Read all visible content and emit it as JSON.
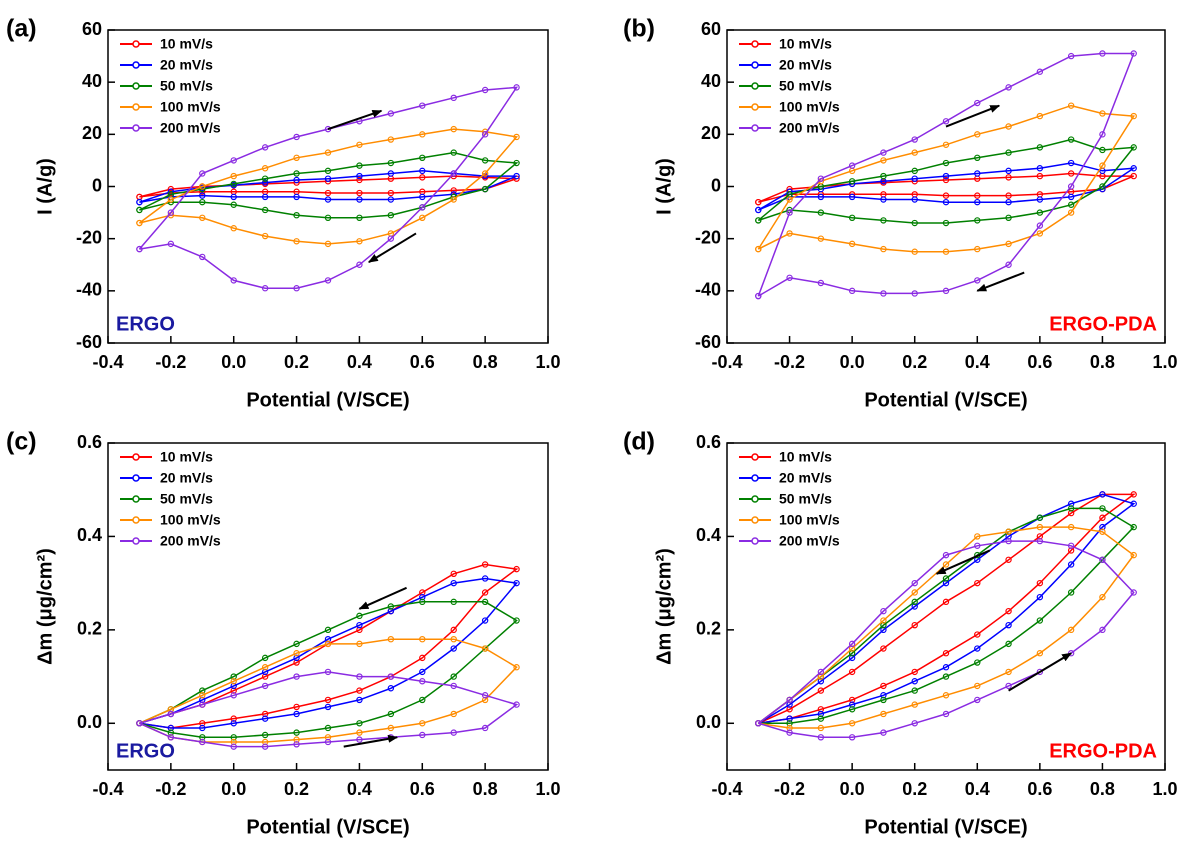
{
  "chart_data": [
    {
      "type": "line",
      "panel": "(a)",
      "annotation": "ERGO",
      "annotation_color": "#1a1aa0",
      "annotation_corner": "lower left",
      "xlabel": "Potential (V/SCE)",
      "ylabel": "I (A/g)",
      "legend": "upper left",
      "xlim": [
        -0.4,
        1.0
      ],
      "xticks": [
        -0.4,
        -0.2,
        {
          "value": 0,
          "label": "0.0"
        },
        0.2,
        0.4,
        0.6,
        0.8,
        {
          "value": 1,
          "label": "1.0"
        }
      ],
      "ylim": [
        -60,
        60
      ],
      "yticks": [
        -60,
        -40,
        -20,
        0,
        20,
        40,
        60
      ],
      "x": [
        -0.3,
        -0.2,
        -0.1,
        0,
        0.1,
        0.2,
        0.3,
        0.4,
        0.5,
        0.6,
        0.7,
        0.8,
        0.9,
        0.8,
        0.7,
        0.6,
        0.5,
        0.4,
        0.3,
        0.2,
        0.1,
        0,
        -0.1,
        -0.2,
        -0.3
      ],
      "series": [
        {
          "name": "10 mV/s",
          "color": "#ff0000",
          "values": [
            -4,
            -1,
            0,
            0.5,
            1,
            1.5,
            2,
            2.5,
            3,
            3.5,
            4,
            3.5,
            3,
            -1,
            -1.5,
            -2,
            -2.5,
            -2.5,
            -2.5,
            -2,
            -2,
            -2,
            -2,
            -2.5,
            -4
          ]
        },
        {
          "name": "20 mV/s",
          "color": "#0000ff",
          "values": [
            -6,
            -2,
            -0.5,
            0.5,
            1.5,
            2.5,
            3,
            4,
            5,
            6,
            5,
            4,
            4,
            -1,
            -3,
            -4,
            -5,
            -5,
            -5,
            -4,
            -4,
            -4,
            -3.5,
            -4,
            -6
          ]
        },
        {
          "name": "50 mV/s",
          "color": "#008000",
          "values": [
            -9,
            -3,
            -1,
            1,
            3,
            5,
            6,
            8,
            9,
            11,
            13,
            10,
            9,
            -1,
            -4,
            -8,
            -11,
            -12,
            -12,
            -11,
            -9,
            -7,
            -6,
            -6,
            -9
          ]
        },
        {
          "name": "100 mV/s",
          "color": "#ff8c00",
          "values": [
            -14,
            -5,
            0,
            4,
            7,
            11,
            13,
            16,
            18,
            20,
            22,
            21,
            19,
            5,
            -5,
            -12,
            -18,
            -21,
            -22,
            -21,
            -19,
            -16,
            -12,
            -11,
            -14
          ]
        },
        {
          "name": "200 mV/s",
          "color": "#8a2be2",
          "values": [
            -24,
            -10,
            5,
            10,
            15,
            19,
            22,
            25,
            28,
            31,
            34,
            37,
            38,
            20,
            5,
            -8,
            -20,
            -30,
            -36,
            -39,
            -39,
            -36,
            -27,
            -22,
            -24
          ]
        }
      ]
    },
    {
      "type": "line",
      "panel": "(b)",
      "annotation": "ERGO-PDA",
      "annotation_color": "#ff0000",
      "annotation_corner": "lower right",
      "xlabel": "Potential (V/SCE)",
      "ylabel": "I (A/g)",
      "legend": "upper left",
      "xlim": [
        -0.4,
        1.0
      ],
      "xticks": [
        -0.4,
        -0.2,
        {
          "value": 0,
          "label": "0.0"
        },
        0.2,
        0.4,
        0.6,
        0.8,
        {
          "value": 1,
          "label": "1.0"
        }
      ],
      "ylim": [
        -60,
        60
      ],
      "yticks": [
        -60,
        -40,
        -20,
        0,
        20,
        40,
        60
      ],
      "x": [
        -0.3,
        -0.2,
        -0.1,
        0,
        0.1,
        0.2,
        0.3,
        0.4,
        0.5,
        0.6,
        0.7,
        0.8,
        0.9,
        0.8,
        0.7,
        0.6,
        0.5,
        0.4,
        0.3,
        0.2,
        0.1,
        0,
        -0.1,
        -0.2,
        -0.3
      ],
      "series": [
        {
          "name": "10 mV/s",
          "color": "#ff0000",
          "values": [
            -6,
            -1,
            0,
            1,
            1.5,
            2,
            2.5,
            3,
            3.5,
            4,
            5,
            4,
            4,
            -1,
            -2,
            -3,
            -3.5,
            -3.5,
            -3.5,
            -3,
            -3,
            -3,
            -3,
            -3,
            -6
          ]
        },
        {
          "name": "20 mV/s",
          "color": "#0000ff",
          "values": [
            -9,
            -2,
            -1,
            1,
            2,
            3,
            4,
            5,
            6,
            7,
            9,
            6,
            7,
            -1,
            -4,
            -5,
            -6,
            -6,
            -6,
            -5,
            -5,
            -4,
            -4,
            -4,
            -9
          ]
        },
        {
          "name": "50 mV/s",
          "color": "#008000",
          "values": [
            -13,
            -3,
            0,
            2,
            4,
            6,
            9,
            11,
            13,
            15,
            18,
            14,
            15,
            0,
            -7,
            -10,
            -12,
            -13,
            -14,
            -14,
            -13,
            -12,
            -10,
            -9,
            -13
          ]
        },
        {
          "name": "100 mV/s",
          "color": "#ff8c00",
          "values": [
            -24,
            -5,
            2,
            6,
            10,
            13,
            16,
            20,
            23,
            27,
            31,
            28,
            27,
            8,
            -10,
            -18,
            -22,
            -24,
            -25,
            -25,
            -24,
            -22,
            -20,
            -18,
            -24
          ]
        },
        {
          "name": "200 mV/s",
          "color": "#8a2be2",
          "values": [
            -42,
            -10,
            3,
            8,
            13,
            18,
            25,
            32,
            38,
            44,
            50,
            51,
            51,
            20,
            0,
            -15,
            -30,
            -36,
            -40,
            -41,
            -41,
            -40,
            -37,
            -35,
            -42
          ]
        }
      ]
    },
    {
      "type": "line",
      "panel": "(c)",
      "annotation": "ERGO",
      "annotation_color": "#1a1aa0",
      "annotation_corner": "lower left",
      "xlabel": "Potential (V/SCE)",
      "ylabel": "Δm (μg/cm²)",
      "legend": "upper left",
      "xlim": [
        -0.4,
        1.0
      ],
      "xticks": [
        -0.4,
        -0.2,
        {
          "value": 0,
          "label": "0.0"
        },
        0.2,
        0.4,
        0.6,
        0.8,
        {
          "value": 1,
          "label": "1.0"
        }
      ],
      "ylim": [
        -0.1,
        0.6
      ],
      "yticks": [
        {
          "value": 0,
          "label": "0.0"
        },
        0.2,
        0.4,
        0.6
      ],
      "x": [
        -0.3,
        -0.2,
        -0.1,
        0,
        0.1,
        0.2,
        0.3,
        0.4,
        0.5,
        0.6,
        0.7,
        0.8,
        0.9,
        0.8,
        0.7,
        0.6,
        0.5,
        0.4,
        0.3,
        0.2,
        0.1,
        0,
        -0.1,
        -0.2,
        -0.3
      ],
      "series": [
        {
          "name": "10 mV/s",
          "color": "#ff0000",
          "values": [
            0,
            -0.01,
            0,
            0.01,
            0.02,
            0.035,
            0.05,
            0.07,
            0.1,
            0.14,
            0.2,
            0.28,
            0.33,
            0.34,
            0.32,
            0.28,
            0.24,
            0.2,
            0.17,
            0.13,
            0.1,
            0.07,
            0.04,
            0.02,
            0
          ]
        },
        {
          "name": "20 mV/s",
          "color": "#0000ff",
          "values": [
            0,
            -0.01,
            -0.01,
            0,
            0.01,
            0.02,
            0.035,
            0.05,
            0.075,
            0.11,
            0.16,
            0.22,
            0.3,
            0.31,
            0.3,
            0.27,
            0.24,
            0.21,
            0.18,
            0.14,
            0.11,
            0.08,
            0.05,
            0.02,
            0
          ]
        },
        {
          "name": "50 mV/s",
          "color": "#008000",
          "values": [
            0,
            -0.02,
            -0.03,
            -0.03,
            -0.025,
            -0.02,
            -0.01,
            0,
            0.02,
            0.05,
            0.1,
            0.16,
            0.22,
            0.26,
            0.26,
            0.26,
            0.25,
            0.23,
            0.2,
            0.17,
            0.14,
            0.1,
            0.07,
            0.03,
            0
          ]
        },
        {
          "name": "100 mV/s",
          "color": "#ff8c00",
          "values": [
            0,
            -0.03,
            -0.04,
            -0.04,
            -0.04,
            -0.035,
            -0.03,
            -0.02,
            -0.01,
            0,
            0.02,
            0.05,
            0.12,
            0.16,
            0.18,
            0.18,
            0.18,
            0.17,
            0.17,
            0.15,
            0.12,
            0.09,
            0.06,
            0.03,
            0
          ]
        },
        {
          "name": "200 mV/s",
          "color": "#8a2be2",
          "values": [
            0,
            -0.03,
            -0.04,
            -0.05,
            -0.05,
            -0.045,
            -0.04,
            -0.035,
            -0.03,
            -0.025,
            -0.02,
            -0.01,
            0.04,
            0.06,
            0.08,
            0.09,
            0.1,
            0.1,
            0.11,
            0.1,
            0.08,
            0.06,
            0.04,
            0.02,
            0
          ]
        }
      ]
    },
    {
      "type": "line",
      "panel": "(d)",
      "annotation": "ERGO-PDA",
      "annotation_color": "#ff0000",
      "annotation_corner": "lower right",
      "xlabel": "Potential (V/SCE)",
      "ylabel": "Δm (μg/cm²)",
      "legend": "upper left",
      "xlim": [
        -0.4,
        1.0
      ],
      "xticks": [
        -0.4,
        -0.2,
        {
          "value": 0,
          "label": "0.0"
        },
        0.2,
        0.4,
        0.6,
        0.8,
        {
          "value": 1,
          "label": "1.0"
        }
      ],
      "ylim": [
        -0.1,
        0.6
      ],
      "yticks": [
        {
          "value": 0,
          "label": "0.0"
        },
        0.2,
        0.4,
        0.6
      ],
      "x": [
        -0.3,
        -0.2,
        -0.1,
        0,
        0.1,
        0.2,
        0.3,
        0.4,
        0.5,
        0.6,
        0.7,
        0.8,
        0.9,
        0.8,
        0.7,
        0.6,
        0.5,
        0.4,
        0.3,
        0.2,
        0.1,
        0,
        -0.1,
        -0.2,
        -0.3
      ],
      "series": [
        {
          "name": "10 mV/s",
          "color": "#ff0000",
          "values": [
            0,
            0.01,
            0.03,
            0.05,
            0.08,
            0.11,
            0.15,
            0.19,
            0.24,
            0.3,
            0.37,
            0.44,
            0.49,
            0.49,
            0.45,
            0.4,
            0.35,
            0.3,
            0.26,
            0.21,
            0.16,
            0.11,
            0.07,
            0.03,
            0
          ]
        },
        {
          "name": "20 mV/s",
          "color": "#0000ff",
          "values": [
            0,
            0.01,
            0.02,
            0.04,
            0.06,
            0.09,
            0.12,
            0.16,
            0.21,
            0.27,
            0.34,
            0.42,
            0.47,
            0.49,
            0.47,
            0.44,
            0.4,
            0.35,
            0.3,
            0.25,
            0.2,
            0.14,
            0.09,
            0.04,
            0
          ]
        },
        {
          "name": "50 mV/s",
          "color": "#008000",
          "values": [
            0,
            0,
            0.01,
            0.03,
            0.05,
            0.07,
            0.1,
            0.13,
            0.17,
            0.22,
            0.28,
            0.35,
            0.42,
            0.46,
            0.46,
            0.44,
            0.41,
            0.36,
            0.31,
            0.26,
            0.21,
            0.15,
            0.1,
            0.05,
            0
          ]
        },
        {
          "name": "100 mV/s",
          "color": "#ff8c00",
          "values": [
            0,
            -0.01,
            -0.01,
            0,
            0.02,
            0.04,
            0.06,
            0.08,
            0.11,
            0.15,
            0.2,
            0.27,
            0.36,
            0.41,
            0.42,
            0.42,
            0.41,
            0.4,
            0.34,
            0.28,
            0.22,
            0.16,
            0.1,
            0.05,
            0
          ]
        },
        {
          "name": "200 mV/s",
          "color": "#8a2be2",
          "values": [
            0,
            -0.02,
            -0.03,
            -0.03,
            -0.02,
            0,
            0.02,
            0.05,
            0.08,
            0.11,
            0.15,
            0.2,
            0.28,
            0.35,
            0.38,
            0.39,
            0.39,
            0.38,
            0.36,
            0.3,
            0.24,
            0.17,
            0.11,
            0.05,
            0
          ]
        }
      ]
    }
  ]
}
